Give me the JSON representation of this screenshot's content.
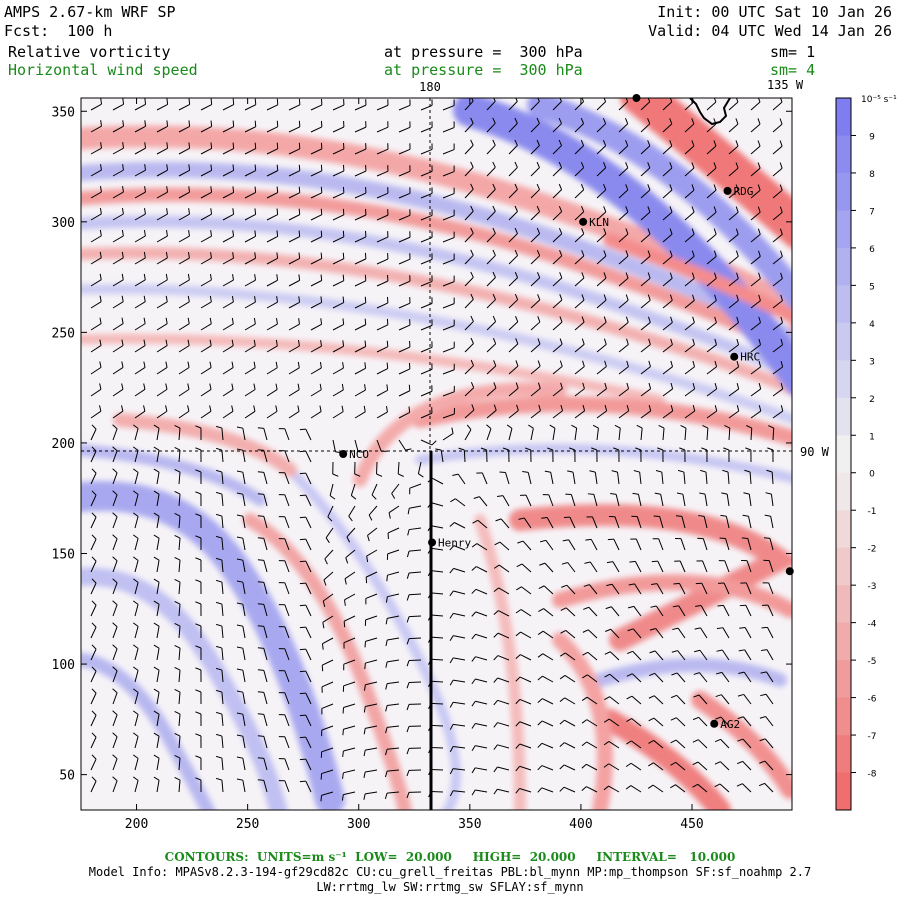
{
  "header": {
    "model": "AMPS 2.67-km WRF SP",
    "forecast": "Fcst:  100 h",
    "init": "Init: 00 UTC Sat 10 Jan 26",
    "valid": "Valid: 04 UTC Wed 14 Jan 26",
    "field1": {
      "name": "Relative vorticity",
      "level": "at pressure =  300 hPa",
      "smooth": "sm= 1"
    },
    "field2": {
      "name": "Horizontal wind speed",
      "level": "at pressure =  300 hPa",
      "smooth": "sm= 4"
    }
  },
  "map": {
    "x_ticks": [
      "200",
      "250",
      "300",
      "350",
      "400",
      "450"
    ],
    "x_tick_values": [
      200,
      250,
      300,
      350,
      400,
      450
    ],
    "y_ticks": [
      "50",
      "100",
      "150",
      "200",
      "250",
      "300",
      "350"
    ],
    "y_tick_values": [
      50,
      100,
      150,
      200,
      250,
      300,
      350
    ],
    "x_range": [
      175,
      495
    ],
    "y_range": [
      34,
      356
    ],
    "meridian_labels": {
      "top": "180",
      "top_right": "135 W",
      "right": "90 W"
    },
    "stations": [
      {
        "name": "RDG",
        "x": 466,
        "y": 314
      },
      {
        "name": "KLN",
        "x": 401,
        "y": 300
      },
      {
        "name": "HRC",
        "x": 469,
        "y": 239
      },
      {
        "name": "NCO",
        "x": 293,
        "y": 195
      },
      {
        "name": "Henry",
        "x": 333,
        "y": 155
      },
      {
        "name": "AG2",
        "x": 460,
        "y": 73
      },
      {
        "name": "",
        "x": 494,
        "y": 142
      },
      {
        "name": "",
        "x": 425,
        "y": 356
      }
    ],
    "colors": {
      "positive": "#7b7bf0",
      "negative": "#f07070",
      "barb": "#000000",
      "label_green": "#1a8a1a"
    }
  },
  "colorbar": {
    "unit": "10⁻⁵ s⁻¹",
    "labels": [
      "9",
      "8",
      "7",
      "6",
      "5",
      "4",
      "3",
      "2",
      "1",
      "0",
      "-1",
      "-2",
      "-3",
      "-4",
      "-5",
      "-6",
      "-7",
      "-8"
    ]
  },
  "footer": {
    "contours": "CONTOURS:  UNITS=m s⁻¹  LOW=  20.000     HIGH=  20.000     INTERVAL=   10.000",
    "model_info": "Model Info: MPASv8.2.3-194-gf29cd82c CU:cu_grell_freitas PBL:bl_mynn MP:mp_thompson SF:sf_noahmp 2.7",
    "model_info2": "LW:rrtmg_lw SW:rrtmg_sw SFLAY:sf_mynn"
  }
}
